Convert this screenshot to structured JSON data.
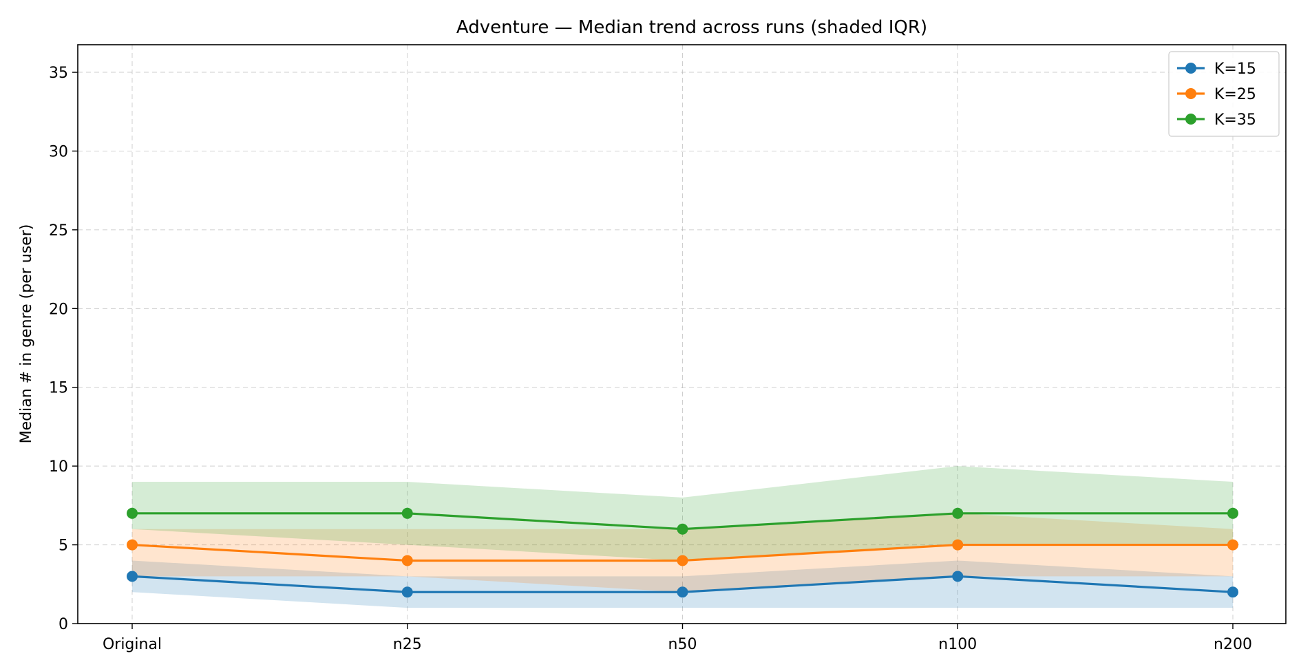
{
  "chart_data": {
    "type": "line",
    "title": "Adventure — Median trend across runs (shaded IQR)",
    "xlabel": "",
    "ylabel": "Median # in genre (per user)",
    "categories": [
      "Original",
      "n25",
      "n50",
      "n100",
      "n200"
    ],
    "ylim": [
      0,
      36.75
    ],
    "yticks": [
      0,
      5,
      10,
      15,
      20,
      25,
      30,
      35
    ],
    "grid": true,
    "legend_position": "top-right",
    "series": [
      {
        "name": "K=15",
        "color": "#1f77b4",
        "values": [
          3,
          2,
          2,
          3,
          2
        ],
        "iqr_low": [
          2,
          1,
          1,
          1,
          1
        ],
        "iqr_high": [
          4,
          3,
          3,
          4,
          3
        ]
      },
      {
        "name": "K=25",
        "color": "#ff7f0e",
        "values": [
          5,
          4,
          4,
          5,
          5
        ],
        "iqr_low": [
          3,
          3,
          2,
          3,
          3
        ],
        "iqr_high": [
          6,
          6,
          6,
          7,
          6
        ]
      },
      {
        "name": "K=35",
        "color": "#2ca02c",
        "values": [
          7,
          7,
          6,
          7,
          7
        ],
        "iqr_low": [
          6,
          5,
          4,
          5,
          5
        ],
        "iqr_high": [
          9,
          9,
          8,
          10,
          9
        ]
      }
    ]
  }
}
